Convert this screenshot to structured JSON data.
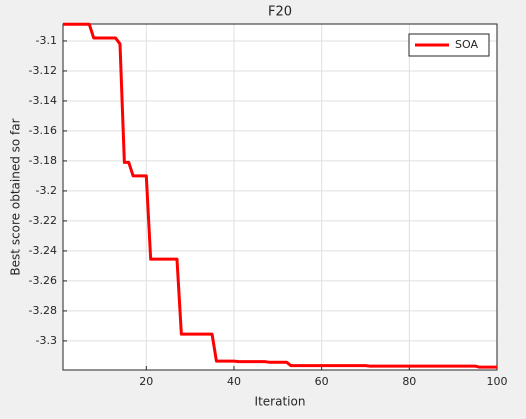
{
  "chart_data": {
    "type": "line",
    "title": "F20",
    "xlabel": "Iteration",
    "ylabel": "Best score obtained so far",
    "x": [
      1,
      2,
      3,
      4,
      5,
      6,
      7,
      8,
      9,
      10,
      11,
      12,
      13,
      14,
      15,
      16,
      17,
      18,
      19,
      20,
      21,
      22,
      23,
      24,
      25,
      26,
      27,
      28,
      29,
      30,
      31,
      32,
      33,
      34,
      35,
      36,
      37,
      38,
      39,
      40,
      41,
      42,
      43,
      44,
      45,
      46,
      47,
      48,
      49,
      50,
      51,
      52,
      53,
      54,
      55,
      56,
      57,
      58,
      59,
      60,
      61,
      62,
      63,
      64,
      65,
      66,
      67,
      68,
      69,
      70,
      71,
      72,
      73,
      74,
      75,
      76,
      77,
      78,
      79,
      80,
      81,
      82,
      83,
      84,
      85,
      86,
      87,
      88,
      89,
      90,
      91,
      92,
      93,
      94,
      95,
      96,
      97,
      98,
      99,
      100
    ],
    "series": [
      {
        "name": "SOA",
        "color": "#ff0000",
        "values": [
          -3.0889,
          -3.0889,
          -3.0889,
          -3.0889,
          -3.0889,
          -3.0889,
          -3.0889,
          -3.098,
          -3.098,
          -3.098,
          -3.098,
          -3.098,
          -3.098,
          -3.102,
          -3.181,
          -3.181,
          -3.19,
          -3.19,
          -3.19,
          -3.19,
          -3.2455,
          -3.2455,
          -3.2455,
          -3.2455,
          -3.2455,
          -3.2455,
          -3.2455,
          -3.2955,
          -3.2955,
          -3.2955,
          -3.2955,
          -3.2955,
          -3.2955,
          -3.2955,
          -3.2955,
          -3.3135,
          -3.3135,
          -3.3135,
          -3.3135,
          -3.3135,
          -3.3138,
          -3.3138,
          -3.3138,
          -3.3138,
          -3.3138,
          -3.3138,
          -3.3138,
          -3.3142,
          -3.3142,
          -3.3142,
          -3.3142,
          -3.3142,
          -3.3165,
          -3.3165,
          -3.3165,
          -3.3165,
          -3.3165,
          -3.3165,
          -3.3165,
          -3.3165,
          -3.3165,
          -3.3165,
          -3.3165,
          -3.3165,
          -3.3165,
          -3.3165,
          -3.3165,
          -3.3165,
          -3.3165,
          -3.3165,
          -3.3168,
          -3.3168,
          -3.3168,
          -3.3168,
          -3.3168,
          -3.3168,
          -3.3168,
          -3.3168,
          -3.3168,
          -3.3168,
          -3.3168,
          -3.3168,
          -3.3168,
          -3.3168,
          -3.3168,
          -3.3168,
          -3.3168,
          -3.3168,
          -3.3168,
          -3.3168,
          -3.3168,
          -3.3168,
          -3.3168,
          -3.3168,
          -3.3168,
          -3.3175,
          -3.3175,
          -3.3175,
          -3.3175,
          -3.3175
        ]
      }
    ],
    "xlim": [
      1,
      100
    ],
    "xticks": [
      20,
      40,
      60,
      80,
      100
    ],
    "ylim": [
      -3.3194,
      -3.0887
    ],
    "yticks": [
      -3.1,
      -3.12,
      -3.14,
      -3.16,
      -3.18,
      -3.2,
      -3.22,
      -3.24,
      -3.26,
      -3.28,
      -3.3
    ],
    "grid": true,
    "legend": "upper right"
  }
}
